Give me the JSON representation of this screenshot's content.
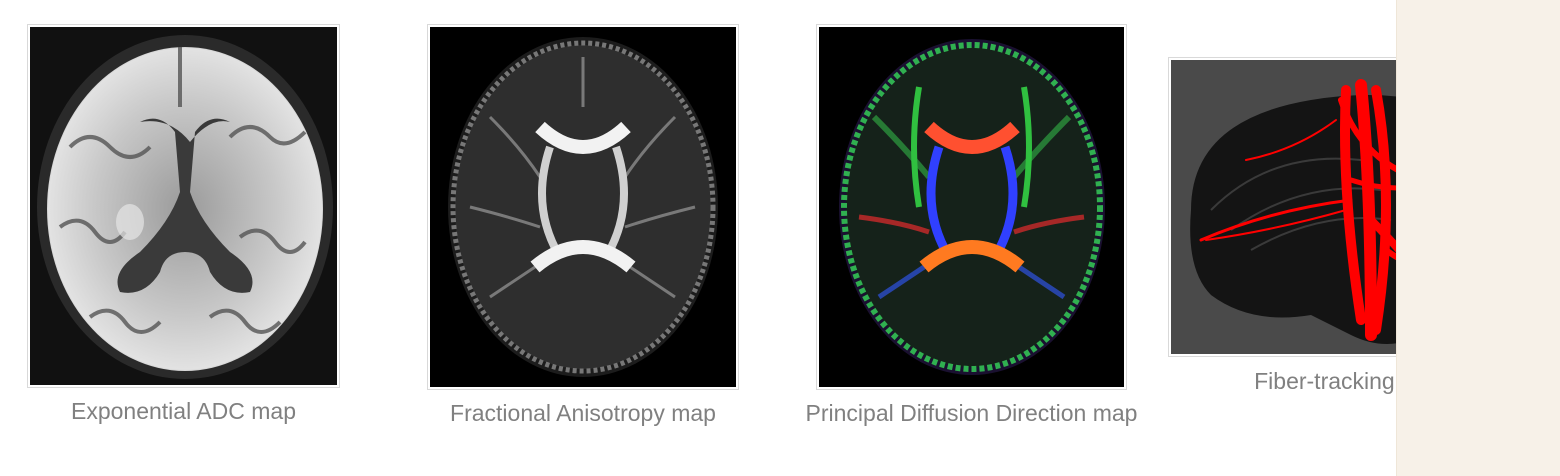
{
  "gallery": {
    "items": [
      {
        "caption": "Exponential ADC map",
        "image_icon": "brain-adc-map-icon"
      },
      {
        "caption": "Fractional Anisotropy map",
        "image_icon": "brain-fa-map-icon"
      },
      {
        "caption": "Principal Diffusion Direction map",
        "image_icon": "brain-pdd-map-icon"
      },
      {
        "caption": "Fiber-tracking map",
        "image_icon": "brain-fiber-tracking-icon"
      }
    ]
  },
  "colors": {
    "caption_text": "#808080",
    "frame_border": "#d9d9d9",
    "side_strip": "#f7f1e8",
    "fiber_tracts": "#ff0000",
    "fiber_background": "#4a4a4a"
  }
}
